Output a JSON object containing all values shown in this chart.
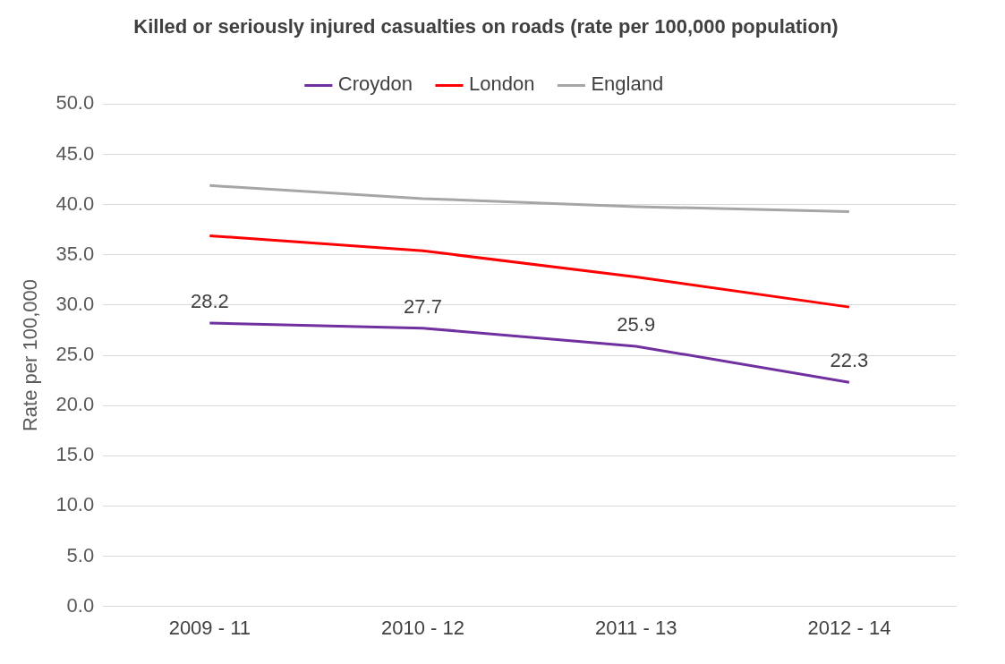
{
  "chart_data": {
    "type": "line",
    "title": "Killed or seriously injured casualties on roads (rate per 100,000 population)",
    "ylabel": "Rate per 100,000",
    "categories": [
      "2009 - 11",
      "2010 - 12",
      "2011 - 13",
      "2012 - 14"
    ],
    "series": [
      {
        "name": "Croydon",
        "color": "#7030a0",
        "values": [
          28.2,
          27.7,
          25.9,
          22.3
        ],
        "value_labels": [
          "28.2",
          "27.7",
          "25.9",
          "22.3"
        ]
      },
      {
        "name": "London",
        "color": "#ff0000",
        "values": [
          36.9,
          35.4,
          32.8,
          29.8
        ]
      },
      {
        "name": "England",
        "color": "#a6a6a6",
        "values": [
          41.9,
          40.6,
          39.8,
          39.3
        ]
      }
    ],
    "ylim": [
      0,
      50
    ],
    "yticks": [
      {
        "value": 0,
        "label": "0.0"
      },
      {
        "value": 5,
        "label": "5.0"
      },
      {
        "value": 10,
        "label": "10.0"
      },
      {
        "value": 15,
        "label": "15.0"
      },
      {
        "value": 20,
        "label": "20.0"
      },
      {
        "value": 25,
        "label": "25.0"
      },
      {
        "value": 30,
        "label": "30.0"
      },
      {
        "value": 35,
        "label": "35.0"
      },
      {
        "value": 40,
        "label": "40.0"
      },
      {
        "value": 45,
        "label": "45.0"
      },
      {
        "value": 50,
        "label": "50.0"
      }
    ],
    "grid": "y",
    "legend": "top",
    "marker": "none",
    "line_style": "solid"
  }
}
